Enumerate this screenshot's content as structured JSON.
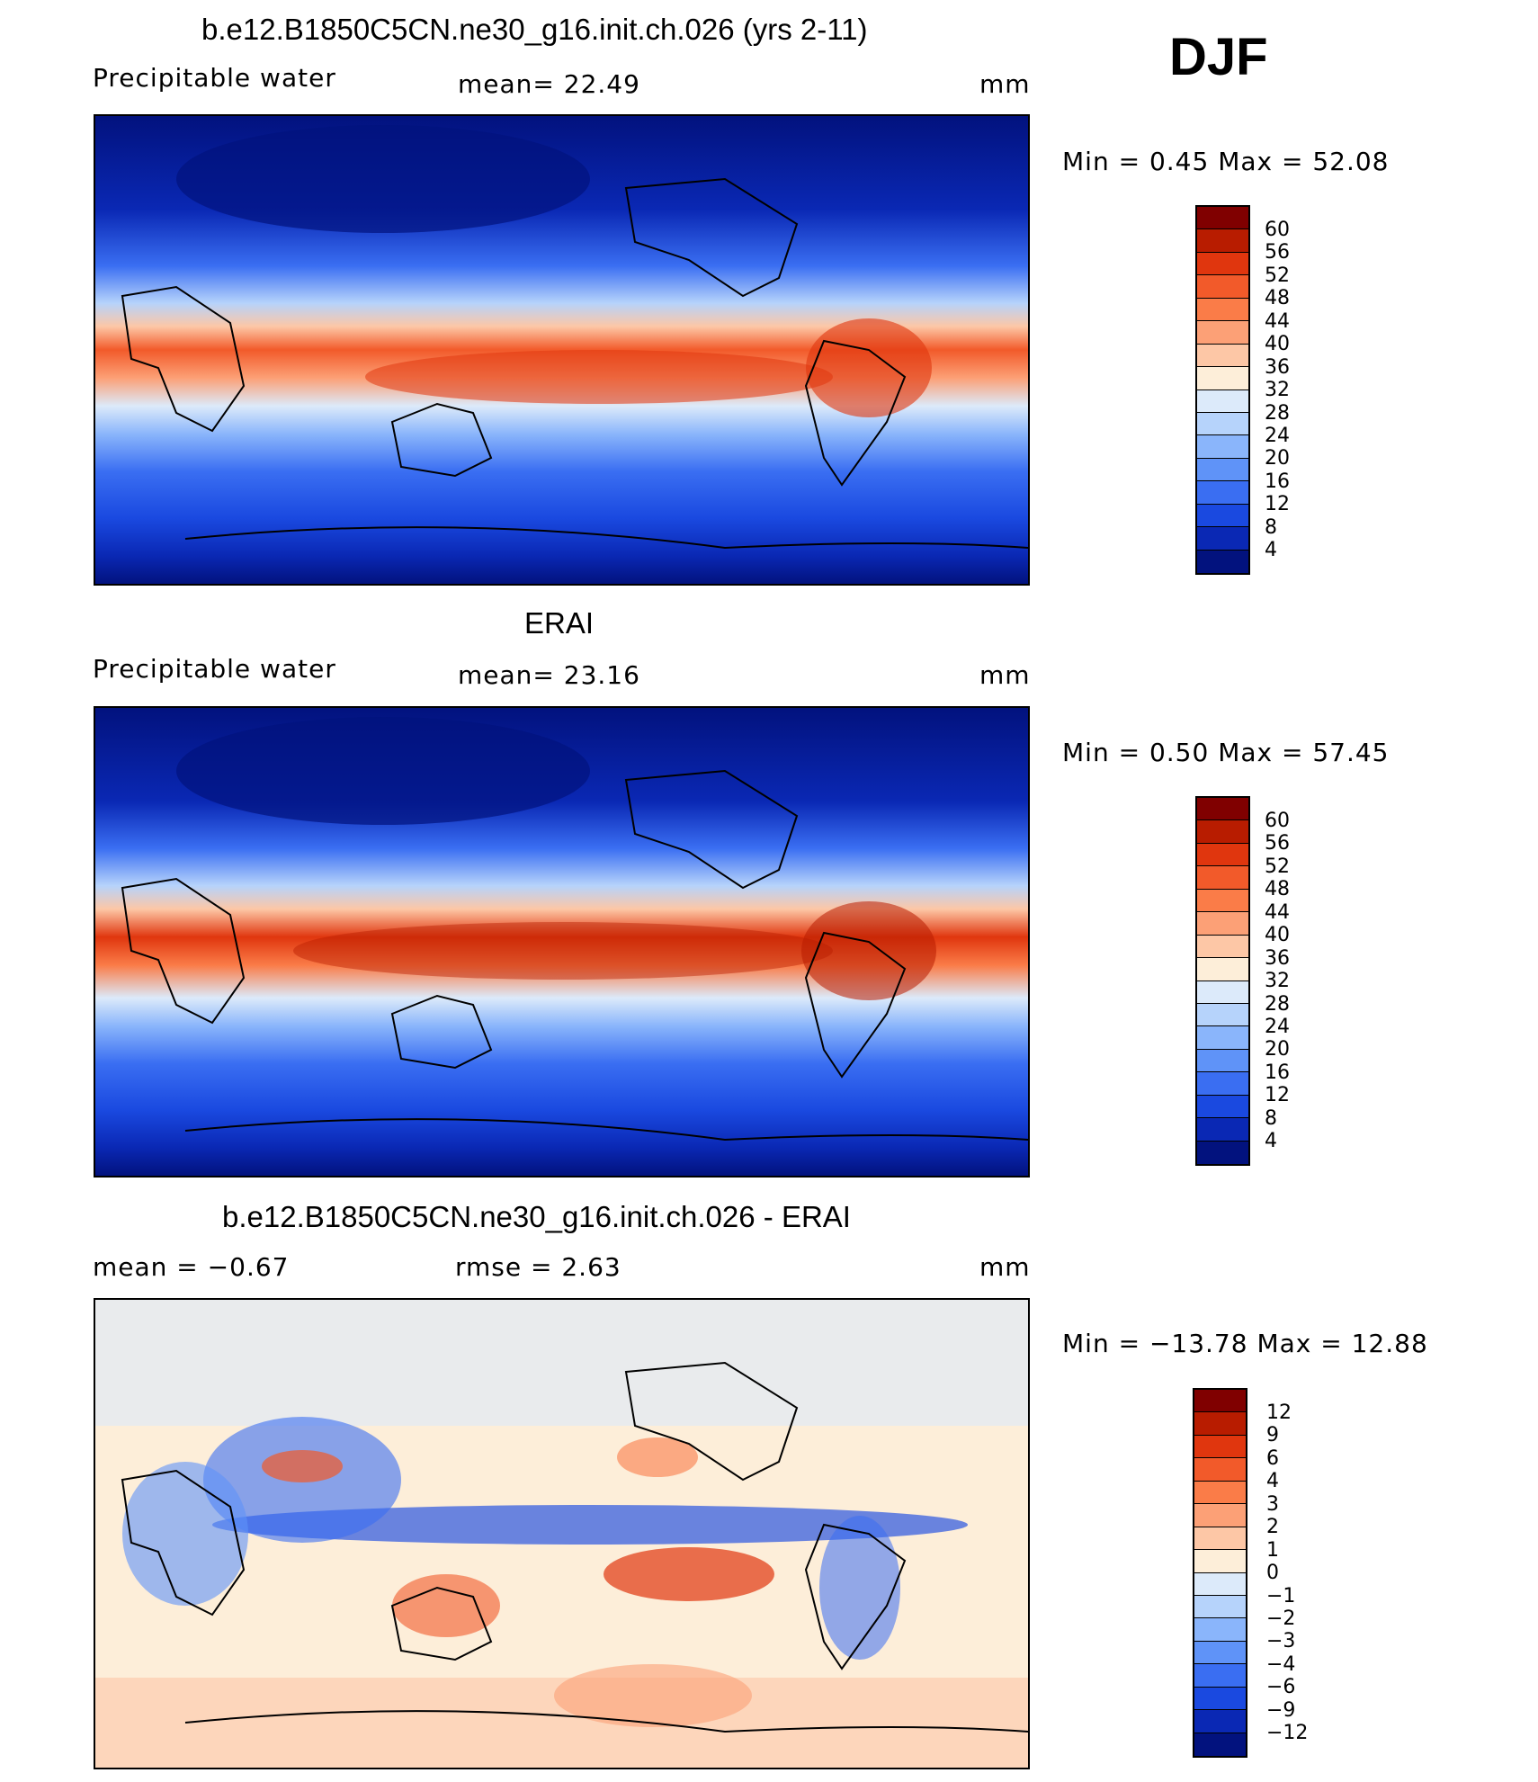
{
  "season": "DJF",
  "panels": [
    {
      "title": "b.e12.B1850C5CN.ne30_g16.init.ch.026 (yrs 2-11)",
      "left_label": "Precipitable  water",
      "center_label": "mean=   22.49",
      "units": "mm",
      "minmax": "Min  =     0.45  Max  =    52.08",
      "colorbar_labels": [
        "60",
        "56",
        "52",
        "48",
        "44",
        "40",
        "36",
        "32",
        "28",
        "24",
        "20",
        "16",
        "12",
        "8",
        "4"
      ],
      "colorbar_colors": [
        "#800000",
        "#b81c00",
        "#e0360e",
        "#f25a2a",
        "#fa7c48",
        "#fca076",
        "#fdc7a6",
        "#fdeed9",
        "#dceafa",
        "#b6d3fb",
        "#8ab5fb",
        "#5f93f8",
        "#3a6ef2",
        "#1a49e0",
        "#0a28b4",
        "#02127e"
      ]
    },
    {
      "title": "ERAI",
      "left_label": "Precipitable  water",
      "center_label": "mean=   23.16",
      "units": "mm",
      "minmax": "Min  =     0.50  Max  =    57.45",
      "colorbar_labels": [
        "60",
        "56",
        "52",
        "48",
        "44",
        "40",
        "36",
        "32",
        "28",
        "24",
        "20",
        "16",
        "12",
        "8",
        "4"
      ],
      "colorbar_colors": [
        "#800000",
        "#b81c00",
        "#e0360e",
        "#f25a2a",
        "#fa7c48",
        "#fca076",
        "#fdc7a6",
        "#fdeed9",
        "#dceafa",
        "#b6d3fb",
        "#8ab5fb",
        "#5f93f8",
        "#3a6ef2",
        "#1a49e0",
        "#0a28b4",
        "#02127e"
      ]
    },
    {
      "title": "b.e12.B1850C5CN.ne30_g16.init.ch.026 - ERAI",
      "left_label": "mean  =    −0.67",
      "center_label": "rmse  =     2.63",
      "units": "mm",
      "minmax": "Min  =  −13.78  Max  =    12.88",
      "colorbar_labels": [
        "12",
        "9",
        "6",
        "4",
        "3",
        "2",
        "1",
        "0",
        "−1",
        "−2",
        "−3",
        "−4",
        "−6",
        "−9",
        "−12"
      ],
      "colorbar_colors": [
        "#800000",
        "#b81c00",
        "#e0360e",
        "#f25a2a",
        "#fa7c48",
        "#fca076",
        "#fdc7a6",
        "#fdeed9",
        "#dceafa",
        "#b6d3fb",
        "#8ab5fb",
        "#5f93f8",
        "#3a6ef2",
        "#1a49e0",
        "#0a28b4",
        "#02127e"
      ]
    }
  ]
}
